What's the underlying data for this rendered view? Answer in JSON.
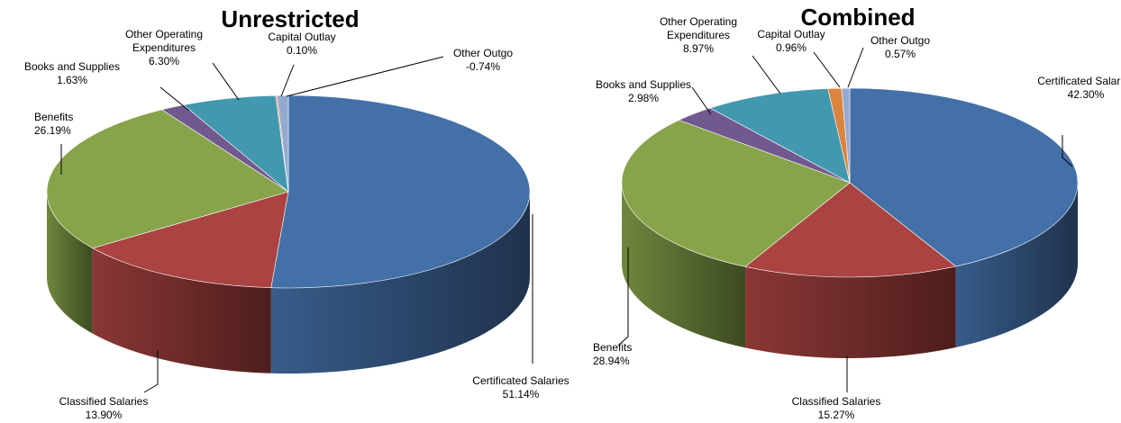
{
  "chart_data": [
    {
      "type": "pie",
      "title": "Unrestricted",
      "slices": [
        {
          "name": "Certificated Salaries",
          "value": 51.14,
          "label": "51.14%",
          "color": "#4470a8"
        },
        {
          "name": "Classified Salaries",
          "value": 13.9,
          "label": "13.90%",
          "color": "#aa4341"
        },
        {
          "name": "Benefits",
          "value": 26.19,
          "label": "26.19%",
          "color": "#88a44b"
        },
        {
          "name": "Books and Supplies",
          "value": 1.63,
          "label": "1.63%",
          "color": "#71588f"
        },
        {
          "name": "Other Operating Expenditures",
          "value": 6.3,
          "label": "6.30%",
          "color": "#4298af"
        },
        {
          "name": "Capital Outlay",
          "value": 0.1,
          "label": "0.10%",
          "color": "#db843d"
        },
        {
          "name": "Other Outgo",
          "value": -0.74,
          "label": "-0.74%",
          "color": "#94a9d0"
        }
      ]
    },
    {
      "type": "pie",
      "title": "Combined",
      "slices": [
        {
          "name": "Certificated Salaries",
          "value": 42.3,
          "label": "42.30%",
          "color": "#4470a8"
        },
        {
          "name": "Classified Salaries",
          "value": 15.27,
          "label": "15.27%",
          "color": "#aa4341"
        },
        {
          "name": "Benefits",
          "value": 28.94,
          "label": "28.94%",
          "color": "#88a44b"
        },
        {
          "name": "Books and Supplies",
          "value": 2.98,
          "label": "2.98%",
          "color": "#71588f"
        },
        {
          "name": "Other Operating Expenditures",
          "value": 8.97,
          "label": "8.97%",
          "color": "#4298af"
        },
        {
          "name": "Capital Outlay",
          "value": 0.96,
          "label": "0.96%",
          "color": "#db843d"
        },
        {
          "name": "Other Outgo",
          "value": 0.57,
          "label": "0.57%",
          "color": "#94a9d0"
        }
      ]
    }
  ]
}
